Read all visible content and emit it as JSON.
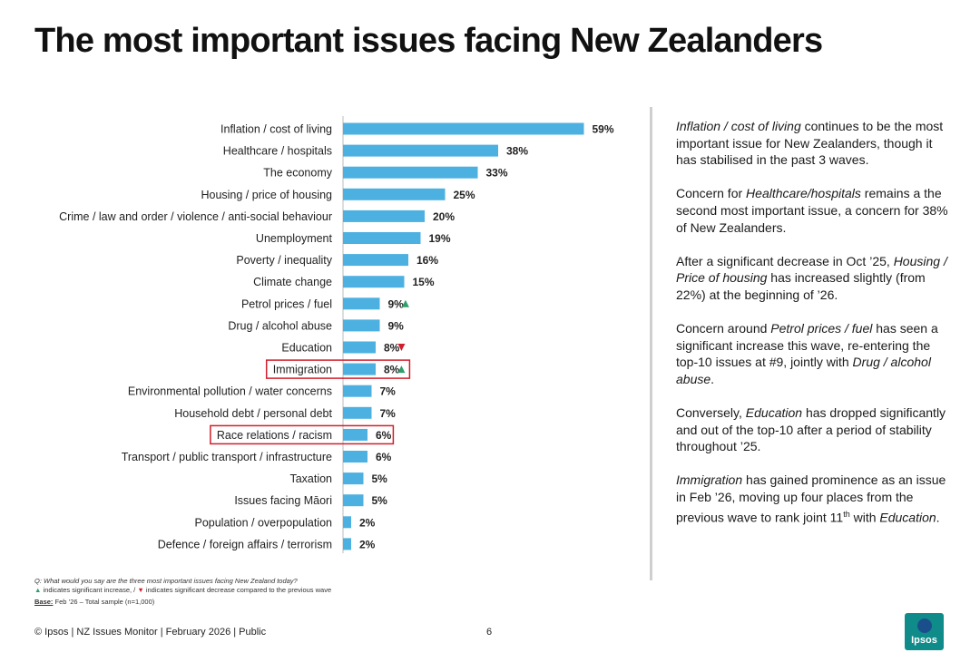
{
  "title": "The most important issues facing New Zealanders",
  "chart_data": {
    "type": "bar",
    "orientation": "horizontal",
    "categories": [
      "Inflation / cost of living",
      "Healthcare / hospitals",
      "The economy",
      "Housing / price of housing",
      "Crime / law and order / violence / anti-social behaviour",
      "Unemployment",
      "Poverty / inequality",
      "Climate change",
      "Petrol prices / fuel",
      "Drug / alcohol abuse",
      "Education",
      "Immigration",
      "Environmental pollution / water concerns",
      "Household debt / personal debt",
      "Race relations / racism",
      "Transport / public transport / infrastructure",
      "Taxation",
      "Issues facing Māori",
      "Population / overpopulation",
      "Defence / foreign affairs / terrorism"
    ],
    "values": [
      59,
      38,
      33,
      25,
      20,
      19,
      16,
      15,
      9,
      9,
      8,
      8,
      7,
      7,
      6,
      6,
      5,
      5,
      2,
      2
    ],
    "value_labels": [
      "59%",
      "38%",
      "33%",
      "25%",
      "20%",
      "19%",
      "16%",
      "15%",
      "9%",
      "9%",
      "8%",
      "8%",
      "7%",
      "7%",
      "6%",
      "6%",
      "5%",
      "5%",
      "2%",
      "2%"
    ],
    "significance": [
      "",
      "",
      "",
      "",
      "",
      "",
      "",
      "",
      "up",
      "",
      "down",
      "up",
      "",
      "",
      "",
      "",
      "",
      "",
      "",
      ""
    ],
    "highlighted": [
      "Immigration",
      "Race relations / racism"
    ],
    "bar_color": "#4cb1e1",
    "up_color": "#2e9e6b",
    "down_color": "#d11e2b",
    "highlight_color": "#d11e2b",
    "xlim": [
      0,
      59
    ]
  },
  "commentary": [
    {
      "parts": [
        {
          "t": "Inflation / cost of living",
          "i": true
        },
        {
          "t": " continues to be the most important issue for New Zealanders, though it has stabilised in the past 3 waves."
        }
      ]
    },
    {
      "parts": [
        {
          "t": "Concern for "
        },
        {
          "t": "Healthcare/hospitals",
          "i": true
        },
        {
          "t": " remains a the second most important issue, a concern for 38% of New Zealanders."
        }
      ]
    },
    {
      "parts": [
        {
          "t": "After a significant decrease in Oct ’25, "
        },
        {
          "t": "Housing / Price of housing",
          "i": true
        },
        {
          "t": " has increased slightly (from 22%) at the beginning of ’26."
        }
      ]
    },
    {
      "parts": [
        {
          "t": "Concern around "
        },
        {
          "t": "Petrol prices / fuel",
          "i": true
        },
        {
          "t": " has seen a significant increase this wave, re-entering the top-10 issues at #9, jointly with "
        },
        {
          "t": "Drug / alcohol abuse",
          "i": true
        },
        {
          "t": "."
        }
      ]
    },
    {
      "parts": [
        {
          "t": "Conversely, "
        },
        {
          "t": "Education",
          "i": true
        },
        {
          "t": " has dropped significantly and out of the top-10 after a period of stability throughout ’25."
        }
      ]
    },
    {
      "parts": [
        {
          "t": "Immigration",
          "i": true
        },
        {
          "t": " has gained prominence as an issue in Feb ’26, moving up four places from the previous wave to rank joint 11"
        },
        {
          "t": "th",
          "sup": true
        },
        {
          "t": " with "
        },
        {
          "t": "Education",
          "i": true
        },
        {
          "t": "."
        }
      ]
    }
  ],
  "footnotes": {
    "question": "Q: What would you say are the three most important issues facing New Zealand today?",
    "up_glyph": "▲",
    "legend_up": " indicates significant increase, / ",
    "down_glyph": "▼",
    "legend_down": " indicates significant decrease compared to the previous wave",
    "base_label": "Base:",
    "base_text": " Feb ’26 – Total sample (n=1,000)"
  },
  "footer": "© Ipsos | NZ Issues Monitor | February 2026 | Public",
  "page_number": "6",
  "logo_text": "Ipsos"
}
